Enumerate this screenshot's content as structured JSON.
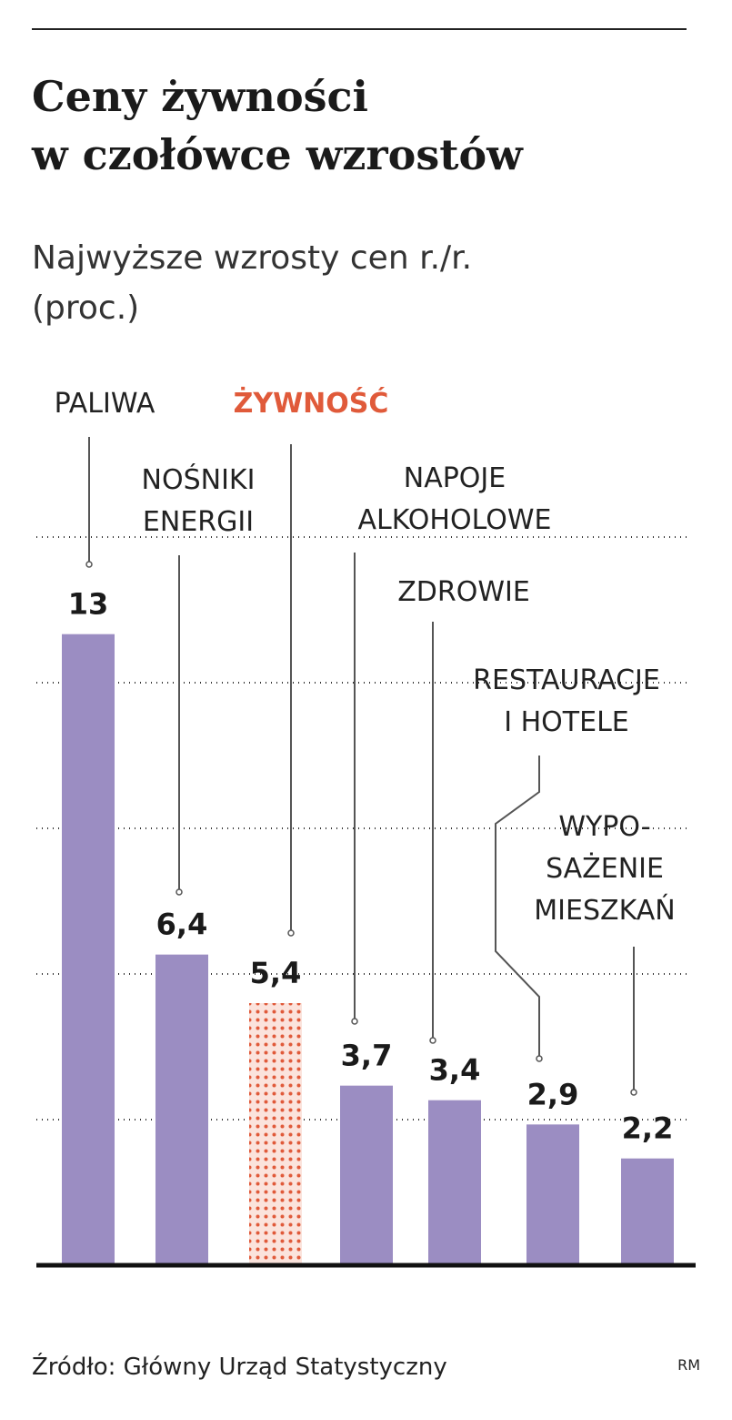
{
  "chart_data": {
    "type": "bar",
    "title": [
      "Ceny żywności",
      "w czołówce wzrostów"
    ],
    "subtitle": [
      "Najwyższe wzrosty cen r./r.",
      "(proc.)"
    ],
    "categories": [
      [
        "PALIWA"
      ],
      [
        "NOŚNIKI",
        "ENERGII"
      ],
      [
        "ŻYWNOŚĆ"
      ],
      [
        "NAPOJE",
        "ALKOHOLOWE"
      ],
      [
        "ZDROWIE"
      ],
      [
        "RESTAURACJE",
        "I HOTELE"
      ],
      [
        "WYPO-",
        "SAŻENIE",
        "MIESZKAŃ"
      ]
    ],
    "values": [
      13,
      6.4,
      5.4,
      3.7,
      3.4,
      2.9,
      2.2
    ],
    "value_labels": [
      "13",
      "6,4",
      "5,4",
      "3,7",
      "3,4",
      "2,9",
      "2,2"
    ],
    "bar_colors": [
      "#9b8dc2",
      "#9b8dc2",
      "#e05a3a",
      "#9b8dc2",
      "#9b8dc2",
      "#9b8dc2",
      "#9b8dc2"
    ],
    "label_colors": [
      "#222222",
      "#222222",
      "#e05a3a",
      "#222222",
      "#222222",
      "#222222",
      "#222222"
    ],
    "ylim": [
      0,
      15
    ],
    "yticks": [
      3,
      6,
      9,
      12,
      15
    ],
    "grid": true,
    "source": "Źródło: Główny Urząd Statystyczny",
    "credit": "RM"
  }
}
